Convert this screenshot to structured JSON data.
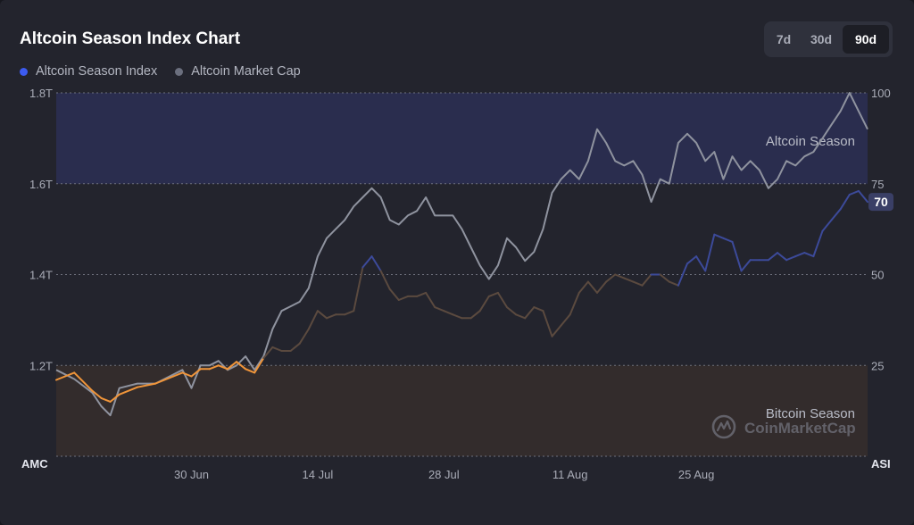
{
  "title": "Altcoin Season Index Chart",
  "legend": [
    {
      "label": "Altcoin Season Index",
      "color": "#3c5bf0"
    },
    {
      "label": "Altcoin Market Cap",
      "color": "#6b6f7e"
    }
  ],
  "ranges": [
    {
      "label": "7d",
      "active": false
    },
    {
      "label": "30d",
      "active": false
    },
    {
      "label": "90d",
      "active": true
    }
  ],
  "watermark": "CoinMarketCap",
  "chart_data": {
    "type": "line",
    "left_axis": {
      "label": "AMC",
      "ticks": [
        "1.8T",
        "1.6T",
        "1.4T",
        "1.2T"
      ],
      "values": [
        1.8,
        1.6,
        1.4,
        1.2
      ],
      "min": 1.0,
      "max": 1.8
    },
    "right_axis": {
      "label": "ASI",
      "ticks": [
        "100",
        "75",
        "50",
        "25"
      ],
      "values": [
        100,
        75,
        50,
        25
      ],
      "min": 0,
      "max": 100
    },
    "x_ticks": [
      "30 Jun",
      "14 Jul",
      "28 Jul",
      "11 Aug",
      "25 Aug"
    ],
    "x_tick_days": [
      15,
      29,
      43,
      57,
      71
    ],
    "x_days": 90,
    "zones": {
      "altcoin": {
        "label": "Altcoin Season",
        "from": 75,
        "to": 100,
        "color": "#2a2d4e"
      },
      "bitcoin": {
        "label": "Bitcoin Season",
        "from": 0,
        "to": 25,
        "color": "#332c2c"
      }
    },
    "current_value": "70",
    "series": [
      {
        "name": "Altcoin Market Cap",
        "axis": "left",
        "color": "#8f939f",
        "points": [
          [
            0,
            1.19
          ],
          [
            2,
            1.17
          ],
          [
            4,
            1.14
          ],
          [
            5,
            1.11
          ],
          [
            6,
            1.09
          ],
          [
            7,
            1.15
          ],
          [
            9,
            1.16
          ],
          [
            11,
            1.16
          ],
          [
            13,
            1.18
          ],
          [
            14,
            1.19
          ],
          [
            15,
            1.15
          ],
          [
            16,
            1.2
          ],
          [
            17,
            1.2
          ],
          [
            18,
            1.21
          ],
          [
            19,
            1.19
          ],
          [
            20,
            1.2
          ],
          [
            21,
            1.22
          ],
          [
            22,
            1.19
          ],
          [
            23,
            1.22
          ],
          [
            24,
            1.28
          ],
          [
            25,
            1.32
          ],
          [
            26,
            1.33
          ],
          [
            27,
            1.34
          ],
          [
            28,
            1.37
          ],
          [
            29,
            1.44
          ],
          [
            30,
            1.48
          ],
          [
            31,
            1.5
          ],
          [
            32,
            1.52
          ],
          [
            33,
            1.55
          ],
          [
            34,
            1.57
          ],
          [
            35,
            1.59
          ],
          [
            36,
            1.57
          ],
          [
            37,
            1.52
          ],
          [
            38,
            1.51
          ],
          [
            39,
            1.53
          ],
          [
            40,
            1.54
          ],
          [
            41,
            1.57
          ],
          [
            42,
            1.53
          ],
          [
            43,
            1.53
          ],
          [
            44,
            1.53
          ],
          [
            45,
            1.5
          ],
          [
            46,
            1.46
          ],
          [
            47,
            1.42
          ],
          [
            48,
            1.39
          ],
          [
            49,
            1.42
          ],
          [
            50,
            1.48
          ],
          [
            51,
            1.46
          ],
          [
            52,
            1.43
          ],
          [
            53,
            1.45
          ],
          [
            54,
            1.5
          ],
          [
            55,
            1.58
          ],
          [
            56,
            1.61
          ],
          [
            57,
            1.63
          ],
          [
            58,
            1.61
          ],
          [
            59,
            1.65
          ],
          [
            60,
            1.72
          ],
          [
            61,
            1.69
          ],
          [
            62,
            1.65
          ],
          [
            63,
            1.64
          ],
          [
            64,
            1.65
          ],
          [
            65,
            1.62
          ],
          [
            66,
            1.56
          ],
          [
            67,
            1.61
          ],
          [
            68,
            1.6
          ],
          [
            69,
            1.69
          ],
          [
            70,
            1.71
          ],
          [
            71,
            1.69
          ],
          [
            72,
            1.65
          ],
          [
            73,
            1.67
          ],
          [
            74,
            1.61
          ],
          [
            75,
            1.66
          ],
          [
            76,
            1.63
          ],
          [
            77,
            1.65
          ],
          [
            78,
            1.63
          ],
          [
            79,
            1.59
          ],
          [
            80,
            1.61
          ],
          [
            81,
            1.65
          ],
          [
            82,
            1.64
          ],
          [
            83,
            1.66
          ],
          [
            84,
            1.67
          ],
          [
            85,
            1.7
          ],
          [
            86,
            1.73
          ],
          [
            87,
            1.76
          ],
          [
            88,
            1.8
          ],
          [
            89,
            1.76
          ],
          [
            90,
            1.72
          ]
        ]
      },
      {
        "name": "Altcoin Season Index",
        "axis": "right",
        "color_bitcoin": "#f0953a",
        "color_neutral": "#5b4a3f",
        "color_altcoin": "#3c4a9a",
        "points": [
          [
            0,
            21
          ],
          [
            2,
            23
          ],
          [
            4,
            18
          ],
          [
            5,
            16
          ],
          [
            6,
            15
          ],
          [
            7,
            17
          ],
          [
            9,
            19
          ],
          [
            11,
            20
          ],
          [
            13,
            22
          ],
          [
            14,
            23
          ],
          [
            15,
            22
          ],
          [
            16,
            24
          ],
          [
            17,
            24
          ],
          [
            18,
            25
          ],
          [
            19,
            24
          ],
          [
            20,
            26
          ],
          [
            21,
            24
          ],
          [
            22,
            23
          ],
          [
            23,
            27
          ],
          [
            24,
            30
          ],
          [
            25,
            29
          ],
          [
            26,
            29
          ],
          [
            27,
            31
          ],
          [
            28,
            35
          ],
          [
            29,
            40
          ],
          [
            30,
            38
          ],
          [
            31,
            39
          ],
          [
            32,
            39
          ],
          [
            33,
            40
          ],
          [
            34,
            52
          ],
          [
            35,
            55
          ],
          [
            36,
            51
          ],
          [
            37,
            46
          ],
          [
            38,
            43
          ],
          [
            39,
            44
          ],
          [
            40,
            44
          ],
          [
            41,
            45
          ],
          [
            42,
            41
          ],
          [
            43,
            40
          ],
          [
            44,
            39
          ],
          [
            45,
            38
          ],
          [
            46,
            38
          ],
          [
            47,
            40
          ],
          [
            48,
            44
          ],
          [
            49,
            45
          ],
          [
            50,
            41
          ],
          [
            51,
            39
          ],
          [
            52,
            38
          ],
          [
            53,
            41
          ],
          [
            54,
            40
          ],
          [
            55,
            33
          ],
          [
            56,
            36
          ],
          [
            57,
            39
          ],
          [
            58,
            45
          ],
          [
            59,
            48
          ],
          [
            60,
            45
          ],
          [
            61,
            48
          ],
          [
            62,
            50
          ],
          [
            63,
            49
          ],
          [
            64,
            48
          ],
          [
            65,
            47
          ],
          [
            66,
            50
          ],
          [
            67,
            50
          ],
          [
            68,
            48
          ],
          [
            69,
            47
          ],
          [
            70,
            53
          ],
          [
            71,
            55
          ],
          [
            72,
            51
          ],
          [
            73,
            61
          ],
          [
            74,
            60
          ],
          [
            75,
            59
          ],
          [
            76,
            51
          ],
          [
            77,
            54
          ],
          [
            78,
            54
          ],
          [
            79,
            54
          ],
          [
            80,
            56
          ],
          [
            81,
            54
          ],
          [
            82,
            55
          ],
          [
            83,
            56
          ],
          [
            84,
            55
          ],
          [
            85,
            62
          ],
          [
            86,
            65
          ],
          [
            87,
            68
          ],
          [
            88,
            72
          ],
          [
            89,
            73
          ],
          [
            90,
            70
          ]
        ]
      }
    ]
  }
}
